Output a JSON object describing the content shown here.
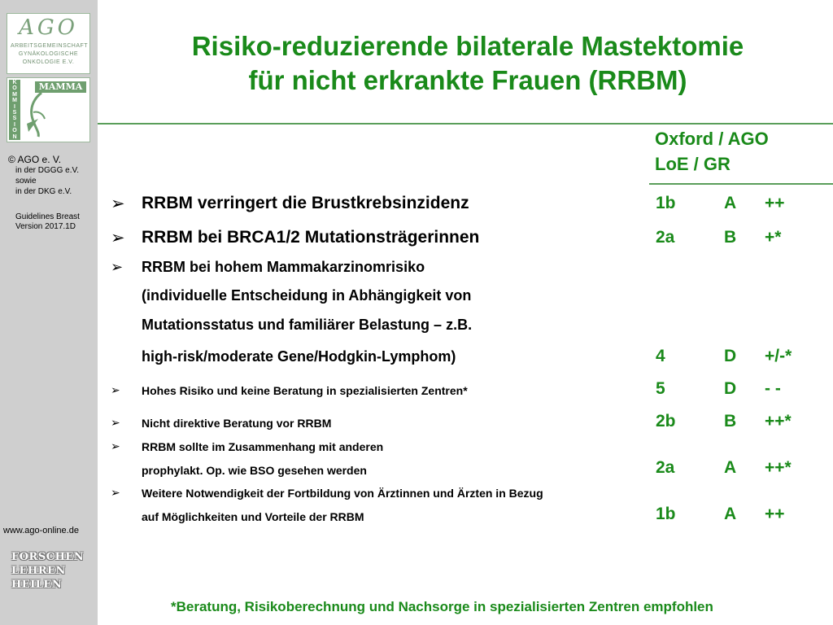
{
  "sidebar": {
    "ago_logo_word": "AGO",
    "ago_logo_lines": [
      "ARBEITSGEMEINSCHAFT",
      "GYNÄKOLOGISCHE",
      "ONKOLOGIE E.V."
    ],
    "mamma_label": "MAMMA",
    "kommission_label": "KOMMISSION",
    "copyright": "© AGO e. V.",
    "copyright_lines": [
      "in der DGGG e.V.",
      "sowie",
      "in der DKG e.V."
    ],
    "guidelines": "Guidelines Breast",
    "version": "Version 2017.1D",
    "url": "www.ago-online.de",
    "motto": [
      "FORSCHEN",
      "LEHREN",
      "HEILEN"
    ]
  },
  "title_line1": "Risiko-reduzierende bilaterale Mastektomie",
  "title_line2": "für nicht erkrankte Frauen (RRBM)",
  "header": {
    "line1": "Oxford / AGO",
    "line2": "LoE  / GR"
  },
  "items": [
    {
      "text": "RRBM verringert die Brustkrebsinzidenz",
      "loe": "1b",
      "gr": "A",
      "rec": "++"
    },
    {
      "text": "RRBM bei BRCA1/2 Mutationsträgerinnen",
      "loe": "2a",
      "gr": "B",
      "rec": "+*"
    },
    {
      "lines": [
        "RRBM bei hohem Mammakarzinomrisiko",
        "(individuelle Entscheidung in Abhängigkeit von",
        "Mutationsstatus und familiärer Belastung – z.B.",
        "high-risk/moderate Gene/Hodgkin-Lymphom)"
      ],
      "loe": "4",
      "gr": "D",
      "rec": "+/-*"
    },
    {
      "text": "Hohes Risiko und keine Beratung in spezialisierten Zentren*",
      "loe": "5",
      "gr": "D",
      "rec": "- -"
    },
    {
      "text": "Nicht direktive Beratung vor RRBM",
      "loe": "2b",
      "gr": "B",
      "rec": "++*"
    },
    {
      "lines": [
        "RRBM sollte im Zusammenhang mit anderen",
        "prophylakt. Op. wie BSO gesehen werden"
      ],
      "loe": "2a",
      "gr": "A",
      "rec": "++*"
    },
    {
      "lines": [
        "Weitere Notwendigkeit der Fortbildung von Ärztinnen und Ärzten in Bezug",
        "auf Möglichkeiten und Vorteile der RRBM"
      ],
      "loe": "1b",
      "gr": "A",
      "rec": "++"
    }
  ],
  "arrow_glyph": "➢",
  "footnote": "*Beratung, Risikoberechnung und Nachsorge in spezialisierten Zentren empfohlen"
}
